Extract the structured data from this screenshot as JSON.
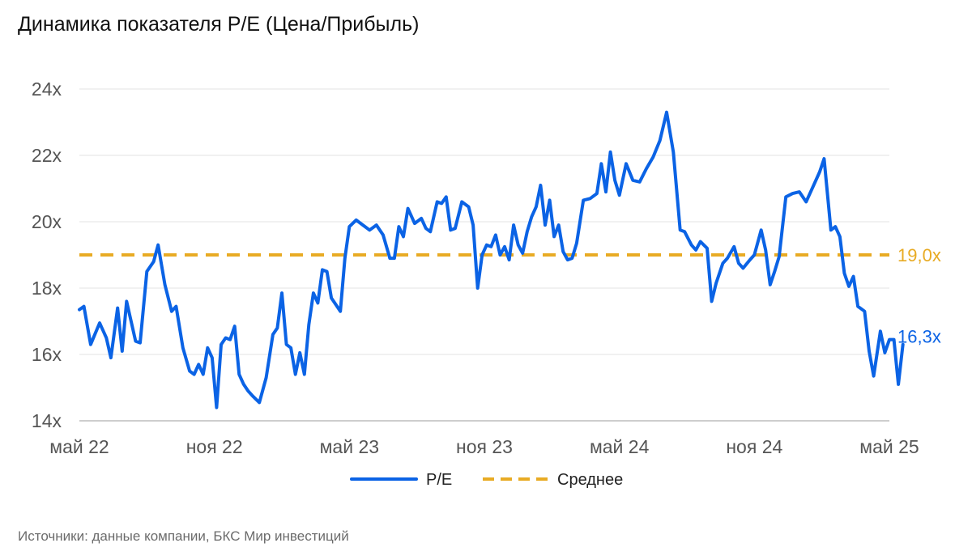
{
  "title": "Динамика показателя P/E (Цена/Прибыль)",
  "source": "Источники: данные компании, БКС Мир инвестиций",
  "colors": {
    "pe": "#0b63e5",
    "mean": "#e8ab24",
    "grid": "#e3e3e3",
    "axis": "#bdbdbd"
  },
  "chart_data": {
    "type": "line",
    "title": "Динамика показателя P/E (Цена/Прибыль)",
    "xlabel": "",
    "ylabel": "",
    "x_ticks": [
      "май 22",
      "ноя 22",
      "май 23",
      "ноя 23",
      "май 24",
      "ноя 24",
      "май 25"
    ],
    "y_ticks": [
      "14x",
      "16x",
      "18x",
      "20x",
      "22x",
      "24x"
    ],
    "y_tick_values": [
      14,
      16,
      18,
      20,
      22,
      24
    ],
    "ylim": [
      14,
      24
    ],
    "x_unit": "months since май 22",
    "xlim": [
      0,
      36
    ],
    "grid": true,
    "legend_position": "bottom",
    "series": [
      {
        "name": "P/E",
        "style": "solid",
        "end_label": "16,3x",
        "points": [
          [
            0.0,
            17.35
          ],
          [
            0.2,
            17.45
          ],
          [
            0.5,
            16.3
          ],
          [
            0.9,
            16.95
          ],
          [
            1.2,
            16.5
          ],
          [
            1.4,
            15.9
          ],
          [
            1.7,
            17.4
          ],
          [
            1.9,
            16.1
          ],
          [
            2.1,
            17.6
          ],
          [
            2.5,
            16.4
          ],
          [
            2.7,
            16.35
          ],
          [
            3.0,
            18.5
          ],
          [
            3.3,
            18.8
          ],
          [
            3.5,
            19.3
          ],
          [
            3.8,
            18.1
          ],
          [
            4.1,
            17.3
          ],
          [
            4.3,
            17.45
          ],
          [
            4.6,
            16.2
          ],
          [
            4.9,
            15.5
          ],
          [
            5.1,
            15.4
          ],
          [
            5.3,
            15.7
          ],
          [
            5.5,
            15.4
          ],
          [
            5.7,
            16.2
          ],
          [
            5.9,
            15.9
          ],
          [
            6.1,
            14.4
          ],
          [
            6.3,
            16.3
          ],
          [
            6.5,
            16.5
          ],
          [
            6.7,
            16.45
          ],
          [
            6.9,
            16.85
          ],
          [
            7.1,
            15.4
          ],
          [
            7.3,
            15.1
          ],
          [
            7.5,
            14.9
          ],
          [
            7.7,
            14.75
          ],
          [
            8.0,
            14.55
          ],
          [
            8.3,
            15.3
          ],
          [
            8.6,
            16.6
          ],
          [
            8.8,
            16.8
          ],
          [
            9.0,
            17.85
          ],
          [
            9.2,
            16.3
          ],
          [
            9.4,
            16.2
          ],
          [
            9.6,
            15.4
          ],
          [
            9.8,
            16.05
          ],
          [
            10.0,
            15.4
          ],
          [
            10.2,
            16.9
          ],
          [
            10.4,
            17.85
          ],
          [
            10.6,
            17.55
          ],
          [
            10.8,
            18.55
          ],
          [
            11.0,
            18.5
          ],
          [
            11.2,
            17.7
          ],
          [
            11.4,
            17.5
          ],
          [
            11.6,
            17.3
          ],
          [
            11.8,
            18.9
          ],
          [
            12.0,
            19.85
          ],
          [
            12.3,
            20.05
          ],
          [
            12.6,
            19.9
          ],
          [
            12.9,
            19.75
          ],
          [
            13.2,
            19.9
          ],
          [
            13.5,
            19.6
          ],
          [
            13.8,
            18.9
          ],
          [
            14.0,
            18.9
          ],
          [
            14.2,
            19.85
          ],
          [
            14.4,
            19.55
          ],
          [
            14.6,
            20.4
          ],
          [
            14.9,
            19.95
          ],
          [
            15.2,
            20.1
          ],
          [
            15.4,
            19.8
          ],
          [
            15.6,
            19.7
          ],
          [
            15.9,
            20.6
          ],
          [
            16.1,
            20.55
          ],
          [
            16.3,
            20.75
          ],
          [
            16.5,
            19.75
          ],
          [
            16.7,
            19.8
          ],
          [
            17.0,
            20.6
          ],
          [
            17.3,
            20.45
          ],
          [
            17.5,
            19.9
          ],
          [
            17.7,
            18.0
          ],
          [
            17.9,
            19.0
          ],
          [
            18.1,
            19.3
          ],
          [
            18.3,
            19.25
          ],
          [
            18.5,
            19.6
          ],
          [
            18.7,
            19.0
          ],
          [
            18.9,
            19.25
          ],
          [
            19.1,
            18.85
          ],
          [
            19.3,
            19.9
          ],
          [
            19.5,
            19.3
          ],
          [
            19.7,
            19.05
          ],
          [
            19.9,
            19.7
          ],
          [
            20.1,
            20.15
          ],
          [
            20.3,
            20.45
          ],
          [
            20.5,
            21.1
          ],
          [
            20.7,
            19.9
          ],
          [
            20.9,
            20.65
          ],
          [
            21.1,
            19.55
          ],
          [
            21.3,
            19.9
          ],
          [
            21.5,
            19.1
          ],
          [
            21.7,
            18.85
          ],
          [
            21.9,
            18.9
          ],
          [
            22.1,
            19.35
          ],
          [
            22.4,
            20.65
          ],
          [
            22.7,
            20.7
          ],
          [
            23.0,
            20.85
          ],
          [
            23.2,
            21.75
          ],
          [
            23.4,
            20.9
          ],
          [
            23.6,
            22.1
          ],
          [
            23.8,
            21.25
          ],
          [
            24.0,
            20.8
          ],
          [
            24.3,
            21.75
          ],
          [
            24.6,
            21.25
          ],
          [
            24.9,
            21.2
          ],
          [
            25.2,
            21.6
          ],
          [
            25.5,
            21.95
          ],
          [
            25.8,
            22.45
          ],
          [
            26.1,
            23.3
          ],
          [
            26.4,
            22.1
          ],
          [
            26.7,
            19.75
          ],
          [
            26.9,
            19.7
          ],
          [
            27.2,
            19.3
          ],
          [
            27.4,
            19.15
          ],
          [
            27.6,
            19.4
          ],
          [
            27.9,
            19.2
          ],
          [
            28.1,
            17.6
          ],
          [
            28.3,
            18.15
          ],
          [
            28.6,
            18.75
          ],
          [
            28.8,
            18.9
          ],
          [
            29.1,
            19.25
          ],
          [
            29.3,
            18.75
          ],
          [
            29.5,
            18.6
          ],
          [
            29.8,
            18.85
          ],
          [
            30.0,
            19.0
          ],
          [
            30.3,
            19.75
          ],
          [
            30.5,
            19.15
          ],
          [
            30.7,
            18.1
          ],
          [
            30.9,
            18.5
          ],
          [
            31.1,
            18.95
          ],
          [
            31.4,
            20.75
          ],
          [
            31.7,
            20.85
          ],
          [
            32.0,
            20.9
          ],
          [
            32.3,
            20.6
          ],
          [
            32.6,
            21.05
          ],
          [
            32.9,
            21.5
          ],
          [
            33.1,
            21.9
          ],
          [
            33.4,
            19.75
          ],
          [
            33.6,
            19.85
          ],
          [
            33.8,
            19.55
          ],
          [
            34.0,
            18.45
          ],
          [
            34.2,
            18.05
          ],
          [
            34.4,
            18.35
          ],
          [
            34.6,
            17.45
          ],
          [
            34.9,
            17.3
          ],
          [
            35.1,
            16.1
          ],
          [
            35.3,
            15.35
          ],
          [
            35.6,
            16.7
          ],
          [
            35.8,
            16.05
          ],
          [
            36.0,
            16.45
          ],
          [
            36.2,
            16.45
          ],
          [
            36.4,
            15.1
          ],
          [
            36.6,
            16.3
          ]
        ]
      },
      {
        "name": "Среднее",
        "style": "dashed",
        "end_label": "19,0x",
        "value": 19.0
      }
    ]
  }
}
